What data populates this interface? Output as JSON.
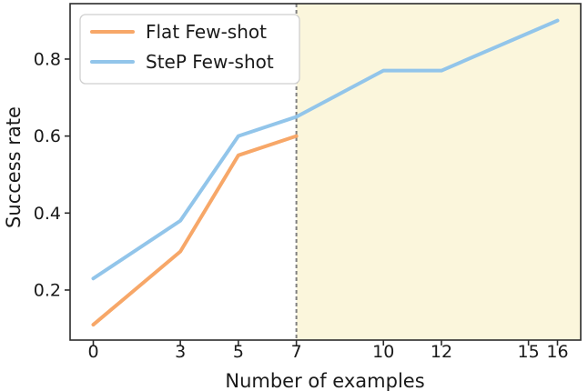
{
  "chart_data": {
    "type": "line",
    "title": "",
    "xlabel": "Number of examples",
    "ylabel": "Success rate",
    "xlim": [
      -0.8,
      16.8
    ],
    "ylim": [
      0.07,
      0.944
    ],
    "x_ticks": [
      0,
      3,
      5,
      7,
      10,
      12,
      15,
      16
    ],
    "y_ticks": [
      0.2,
      0.4,
      0.6,
      0.8
    ],
    "grid": false,
    "legend_position": "upper-left",
    "series": [
      {
        "name": "Flat Few-shot",
        "color": "#F7A768",
        "x": [
          0,
          3,
          5,
          7
        ],
        "y": [
          0.11,
          0.3,
          0.55,
          0.6
        ]
      },
      {
        "name": "SteP Few-shot",
        "color": "#92C5EA",
        "x": [
          0,
          3,
          5,
          7,
          10,
          12,
          16
        ],
        "y": [
          0.23,
          0.38,
          0.6,
          0.65,
          0.77,
          0.77,
          0.9
        ]
      }
    ],
    "annotations": {
      "dashed_vline_x": 7,
      "dashed_vline_color": "#7f7f7f",
      "shaded_region": {
        "x_start": 7,
        "x_end": 16.8,
        "color": "#FBF6DC"
      }
    },
    "spine_color": "#2b2b2b",
    "tick_color": "#2b2b2b"
  }
}
